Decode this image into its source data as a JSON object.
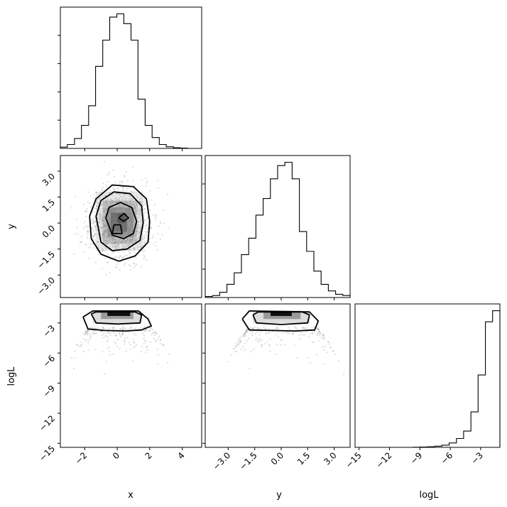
{
  "chart_data": {
    "type": "corner",
    "variables": [
      "x",
      "y",
      "logL"
    ],
    "axis_labels": {
      "x": "x",
      "y": "y",
      "logL": "logL"
    },
    "ranges": {
      "x": [
        -3.5,
        5.2
      ],
      "y": [
        -4.3,
        3.9
      ],
      "logL": [
        -15.4,
        -1.1
      ]
    },
    "ticks": {
      "x": [
        {
          "value": -2,
          "label": "−2"
        },
        {
          "value": 0,
          "label": "0"
        },
        {
          "value": 2,
          "label": "2"
        },
        {
          "value": 4,
          "label": "4"
        }
      ],
      "y": [
        {
          "value": -3.0,
          "label": "−3.0"
        },
        {
          "value": -1.5,
          "label": "−1.5"
        },
        {
          "value": 0.0,
          "label": "0.0"
        },
        {
          "value": 1.5,
          "label": "1.5"
        },
        {
          "value": 3.0,
          "label": "3.0"
        }
      ],
      "logL": [
        {
          "value": -15,
          "label": "−15"
        },
        {
          "value": -12,
          "label": "−12"
        },
        {
          "value": -9,
          "label": "−9"
        },
        {
          "value": -6,
          "label": "−6"
        },
        {
          "value": -3,
          "label": "−3"
        }
      ]
    },
    "histograms": {
      "x": {
        "edges": [
          -3.5,
          -3.07,
          -2.63,
          -2.2,
          -1.76,
          -1.33,
          -0.89,
          -0.46,
          -0.02,
          0.41,
          0.85,
          1.28,
          1.72,
          2.15,
          2.59,
          3.02,
          3.46,
          3.89,
          4.33,
          4.76,
          5.2
        ],
        "counts": [
          0.4,
          1.2,
          3.0,
          7.0,
          13.0,
          25.0,
          33.0,
          40.0,
          41.0,
          38.0,
          33.0,
          15.0,
          7.0,
          3.3,
          1.2,
          0.5,
          0.2,
          0.1,
          0,
          0
        ]
      },
      "y": {
        "edges": [
          -4.3,
          -3.89,
          -3.48,
          -3.07,
          -2.66,
          -2.25,
          -1.84,
          -1.43,
          -1.02,
          -0.61,
          -0.2,
          0.21,
          0.62,
          1.03,
          1.44,
          1.85,
          2.26,
          2.67,
          3.08,
          3.49,
          3.9
        ],
        "counts": [
          0.3,
          0.6,
          1.6,
          4.0,
          7.5,
          13.0,
          18.0,
          25.0,
          30.0,
          36.0,
          40.0,
          41.0,
          36.0,
          20.0,
          14.0,
          8.0,
          4.0,
          2.0,
          1.0,
          0.6
        ]
      },
      "logL": {
        "edges": [
          -15.4,
          -14.69,
          -13.97,
          -13.26,
          -12.54,
          -11.83,
          -11.11,
          -10.4,
          -9.68,
          -8.97,
          -8.25,
          -7.54,
          -6.82,
          -6.11,
          -5.39,
          -4.68,
          -3.96,
          -3.25,
          -2.53,
          -1.82,
          -1.1
        ],
        "counts": [
          0,
          0,
          0,
          0,
          0,
          0,
          0,
          0,
          0.2,
          0.4,
          0.8,
          1.6,
          3.0,
          6.0,
          12.0,
          22.0,
          48.0,
          98.0,
          170.0,
          185.0
        ]
      }
    },
    "contours": {
      "y_vs_x": [
        [
          [
            -1.7,
            0.4
          ],
          [
            -1.3,
            1.4
          ],
          [
            -0.3,
            2.2
          ],
          [
            1.0,
            2.1
          ],
          [
            1.8,
            1.4
          ],
          [
            2.0,
            0.1
          ],
          [
            1.9,
            -1.1
          ],
          [
            1.1,
            -1.9
          ],
          [
            0.1,
            -2.2
          ],
          [
            -1.0,
            -1.8
          ],
          [
            -1.6,
            -0.9
          ],
          [
            -1.7,
            0.4
          ]
        ],
        [
          [
            -1.3,
            0.4
          ],
          [
            -1.0,
            1.3
          ],
          [
            -0.2,
            1.8
          ],
          [
            0.8,
            1.7
          ],
          [
            1.5,
            1.0
          ],
          [
            1.6,
            0.0
          ],
          [
            1.4,
            -1.0
          ],
          [
            0.6,
            -1.5
          ],
          [
            -0.3,
            -1.6
          ],
          [
            -1.0,
            -1.1
          ],
          [
            -1.3,
            0.4
          ]
        ],
        [
          [
            -0.7,
            0.3
          ],
          [
            -0.5,
            0.9
          ],
          [
            0.2,
            1.2
          ],
          [
            0.9,
            0.9
          ],
          [
            1.2,
            0.1
          ],
          [
            1.0,
            -0.6
          ],
          [
            0.4,
            -0.9
          ],
          [
            -0.3,
            -0.7
          ],
          [
            -0.7,
            0.3
          ]
        ],
        [
          [
            0.1,
            0.3
          ],
          [
            0.4,
            0.55
          ],
          [
            0.7,
            0.3
          ],
          [
            0.4,
            0.1
          ],
          [
            0.1,
            0.3
          ]
        ],
        [
          [
            -0.2,
            -0.1
          ],
          [
            0.2,
            -0.1
          ],
          [
            0.3,
            -0.6
          ],
          [
            -0.3,
            -0.6
          ],
          [
            -0.2,
            -0.1
          ]
        ]
      ],
      "logL_vs_x": [
        [
          [
            -2.1,
            -2.4
          ],
          [
            -1.8,
            -3.6
          ],
          [
            -0.8,
            -3.75
          ],
          [
            0.5,
            -3.8
          ],
          [
            1.5,
            -3.7
          ],
          [
            2.1,
            -3.3
          ],
          [
            1.9,
            -2.6
          ],
          [
            1.3,
            -1.8
          ],
          [
            -1.5,
            -1.8
          ],
          [
            -2.1,
            -2.4
          ]
        ],
        [
          [
            -1.6,
            -2.1
          ],
          [
            -1.3,
            -3.0
          ],
          [
            0.0,
            -3.1
          ],
          [
            1.4,
            -3.0
          ],
          [
            1.5,
            -2.2
          ],
          [
            1.1,
            -1.9
          ],
          [
            -1.3,
            -1.9
          ],
          [
            -1.6,
            -2.1
          ]
        ]
      ],
      "logL_vs_y": [
        [
          [
            -2.2,
            -2.6
          ],
          [
            -1.8,
            -3.7
          ],
          [
            -0.5,
            -3.75
          ],
          [
            0.8,
            -3.8
          ],
          [
            1.9,
            -3.7
          ],
          [
            2.1,
            -2.8
          ],
          [
            1.6,
            -1.9
          ],
          [
            -1.8,
            -1.8
          ],
          [
            -2.2,
            -2.6
          ]
        ],
        [
          [
            -1.6,
            -2.2
          ],
          [
            -1.4,
            -3.0
          ],
          [
            0.0,
            -3.15
          ],
          [
            1.5,
            -3.0
          ],
          [
            1.6,
            -2.2
          ],
          [
            1.2,
            -1.9
          ],
          [
            -1.3,
            -1.9
          ],
          [
            -1.6,
            -2.2
          ]
        ]
      ]
    },
    "grid": false,
    "legend": "none"
  }
}
